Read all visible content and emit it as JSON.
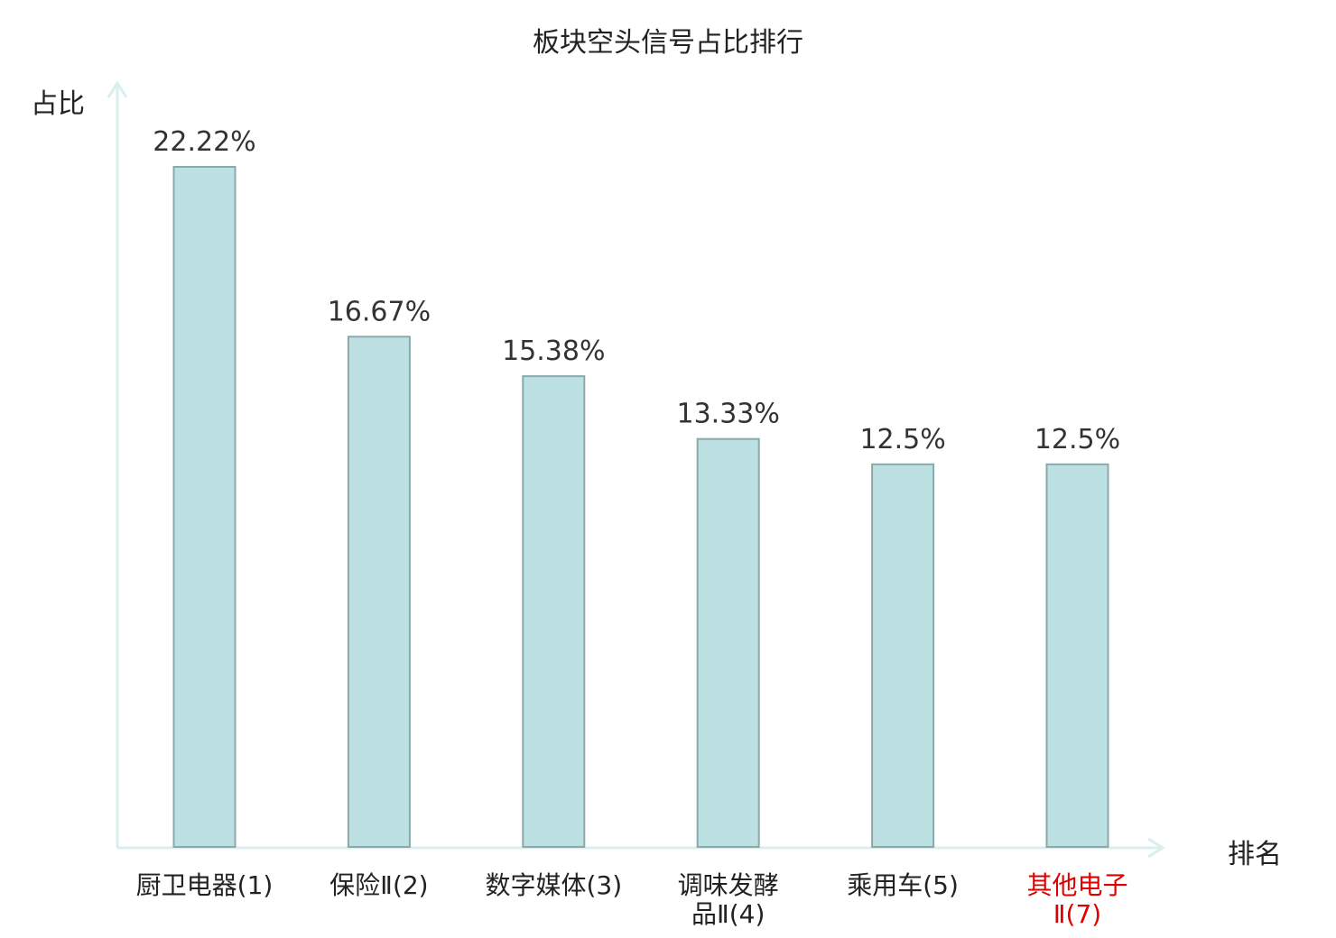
{
  "chart_data": {
    "type": "bar",
    "title": "板块空头信号占比排行",
    "ylabel": "占比",
    "xlabel": "排名",
    "categories": [
      {
        "text": "厨卫电器(1)",
        "line1": "厨卫电器(1)",
        "line2": "",
        "highlight": false
      },
      {
        "text": "保险Ⅱ(2)",
        "line1": "保险Ⅱ(2)",
        "line2": "",
        "highlight": false
      },
      {
        "text": "数字媒体(3)",
        "line1": "数字媒体(3)",
        "line2": "",
        "highlight": false
      },
      {
        "text": "调味发酵品Ⅱ(4)",
        "line1": "调味发酵",
        "line2": "品Ⅱ(4)",
        "highlight": false
      },
      {
        "text": "乘用车(5)",
        "line1": "乘用车(5)",
        "line2": "",
        "highlight": false
      },
      {
        "text": "其他电子Ⅱ(7)",
        "line1": "其他电子",
        "line2": "Ⅱ(7)",
        "highlight": true
      }
    ],
    "values": [
      22.22,
      16.67,
      15.38,
      13.33,
      12.5,
      12.5
    ],
    "value_labels": [
      "22.22%",
      "16.67%",
      "15.38%",
      "13.33%",
      "12.5%",
      "12.5%"
    ],
    "ylim": [
      0,
      22.22
    ],
    "grid": false,
    "colors": {
      "bar_fill": "#bde0e3",
      "bar_stroke": "#8aa9ab",
      "axis": "#d8efee",
      "highlight_text": "#e00000",
      "text": "#222222"
    }
  }
}
